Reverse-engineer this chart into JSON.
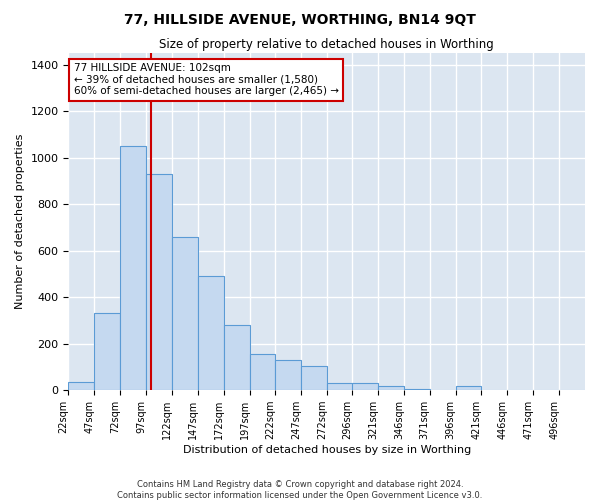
{
  "title1": "77, HILLSIDE AVENUE, WORTHING, BN14 9QT",
  "title2": "Size of property relative to detached houses in Worthing",
  "xlabel": "Distribution of detached houses by size in Worthing",
  "ylabel": "Number of detached properties",
  "footnote1": "Contains HM Land Registry data © Crown copyright and database right 2024.",
  "footnote2": "Contains public sector information licensed under the Open Government Licence v3.0.",
  "annotation_line1": "77 HILLSIDE AVENUE: 102sqm",
  "annotation_line2": "← 39% of detached houses are smaller (1,580)",
  "annotation_line3": "60% of semi-detached houses are larger (2,465) →",
  "bar_color": "#c5d9f0",
  "bar_edge_color": "#5b9bd5",
  "background_color": "#dce6f1",
  "grid_color": "#ffffff",
  "property_line_color": "#cc0000",
  "property_line_x": 102,
  "bin_edges": [
    22,
    47,
    72,
    97,
    122,
    147,
    172,
    197,
    222,
    247,
    272,
    296,
    321,
    346,
    371,
    396,
    421,
    446,
    471,
    496,
    521
  ],
  "bar_heights": [
    35,
    330,
    1050,
    930,
    660,
    490,
    280,
    155,
    130,
    105,
    30,
    30,
    20,
    5,
    0,
    20,
    0,
    0,
    0,
    0
  ],
  "ylim": [
    0,
    1450
  ],
  "yticks": [
    0,
    200,
    400,
    600,
    800,
    1000,
    1200,
    1400
  ]
}
